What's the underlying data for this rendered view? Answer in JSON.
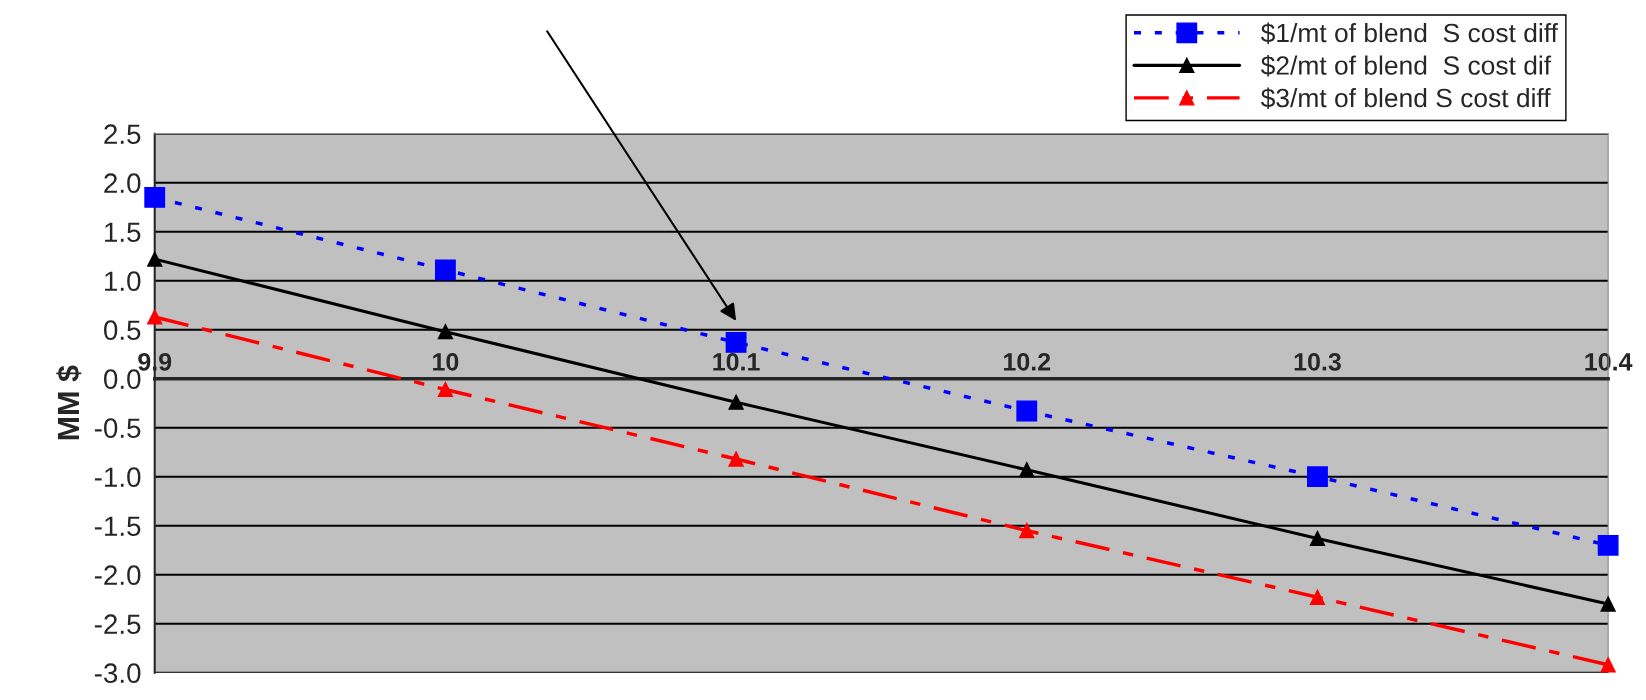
{
  "chart_data": {
    "type": "line",
    "ylabel": "MM $",
    "x": [
      9.9,
      10.0,
      10.1,
      10.2,
      10.3,
      10.4
    ],
    "series": [
      {
        "name": "$1/mt of blend  S cost diff",
        "color": "#0000ff",
        "marker": "square",
        "line_style": "dotted",
        "values": [
          1.85,
          1.11,
          0.37,
          -0.33,
          -1.0,
          -1.7
        ]
      },
      {
        "name": "$2/mt of blend  S cost dif",
        "color": "#000000",
        "marker": "triangle",
        "line_style": "solid",
        "values": [
          1.22,
          0.48,
          -0.24,
          -0.93,
          -1.63,
          -2.3
        ]
      },
      {
        "name": "$3/mt of blend S cost diff",
        "color": "#ff0000",
        "marker": "triangle",
        "line_style": "dashed",
        "values": [
          0.63,
          -0.11,
          -0.82,
          -1.55,
          -2.23,
          -2.92
        ]
      }
    ],
    "xlim": [
      9.9,
      10.4
    ],
    "xticks": [
      9.9,
      10,
      10.1,
      10.2,
      10.3,
      10.4
    ],
    "ylim": [
      -3.0,
      2.5
    ],
    "yticks": [
      {
        "value": -3.0,
        "label": "-3.0"
      },
      {
        "value": -2.5,
        "label": "-2.5"
      },
      {
        "value": -2.0,
        "label": "-2.0"
      },
      {
        "value": -1.5,
        "label": "-1.5"
      },
      {
        "value": -1.0,
        "label": "-1.0"
      },
      {
        "value": -0.5,
        "label": "-0.5"
      },
      {
        "value": 0.0,
        "label": "0.0"
      },
      {
        "value": 0.5,
        "label": "0.5"
      },
      {
        "value": 1.0,
        "label": "1.0"
      },
      {
        "value": 1.5,
        "label": "1.5"
      },
      {
        "value": 2.0,
        "label": "2.0"
      },
      {
        "value": 2.5,
        "label": "2.5"
      }
    ],
    "grid": "y",
    "legend": "top right"
  }
}
